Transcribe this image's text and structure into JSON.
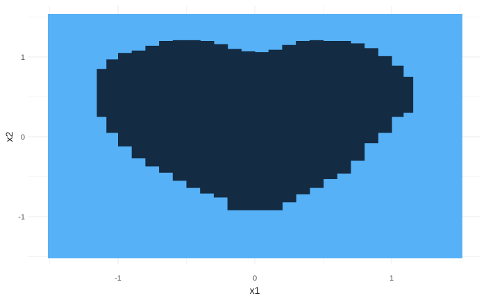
{
  "chart_data": {
    "type": "heatmap",
    "title": "",
    "xlabel": "x1",
    "ylabel": "x2",
    "xlim": [
      -1.5,
      1.5
    ],
    "ylim": [
      -1.5,
      1.5
    ],
    "x_ticks": [
      -1,
      0,
      1
    ],
    "y_ticks": [
      -1,
      0,
      1
    ],
    "grid": true,
    "legend": "none",
    "colors": {
      "background_class": "#56b1f7",
      "heart_class": "#132b43"
    },
    "heart_profile": {
      "x": [
        -1.12,
        -1.05,
        -0.95,
        -0.85,
        -0.75,
        -0.65,
        -0.55,
        -0.45,
        -0.35,
        -0.25,
        -0.15,
        -0.05,
        0.05,
        0.15,
        0.25,
        0.35,
        0.45,
        0.55,
        0.65,
        0.75,
        0.85,
        0.95,
        1.05,
        1.12
      ],
      "upper": [
        0.85,
        0.97,
        1.05,
        1.08,
        1.14,
        1.2,
        1.21,
        1.21,
        1.2,
        1.16,
        1.1,
        1.07,
        1.06,
        1.09,
        1.15,
        1.2,
        1.21,
        1.2,
        1.2,
        1.17,
        1.11,
        1.01,
        0.89,
        0.75
      ],
      "lower": [
        0.25,
        0.05,
        -0.12,
        -0.27,
        -0.37,
        -0.45,
        -0.55,
        -0.64,
        -0.71,
        -0.76,
        -0.92,
        -0.92,
        -0.92,
        -0.92,
        -0.82,
        -0.72,
        -0.64,
        -0.53,
        -0.46,
        -0.3,
        -0.08,
        0.05,
        0.25,
        0.3
      ]
    }
  }
}
